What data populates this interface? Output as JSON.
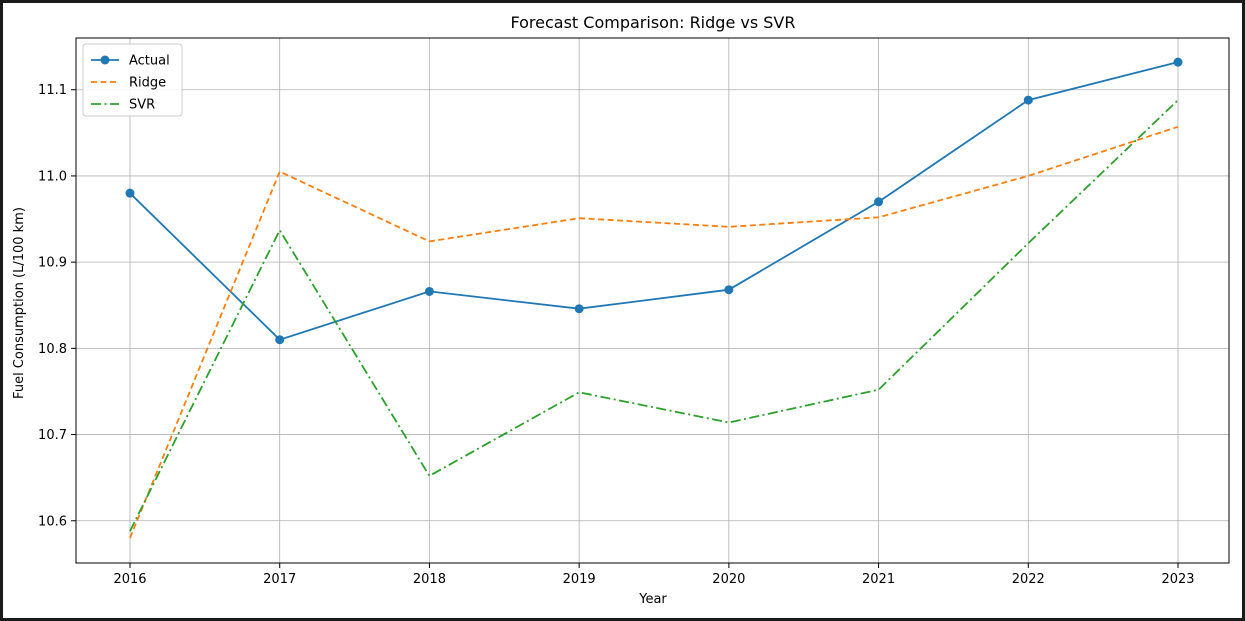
{
  "chart_data": {
    "type": "line",
    "title": "Forecast Comparison: Ridge vs SVR",
    "xlabel": "Year",
    "ylabel": "Fuel Consumption (L/100 km)",
    "x": [
      2016,
      2017,
      2018,
      2019,
      2020,
      2021,
      2022,
      2023
    ],
    "ylim": [
      10.551,
      11.16
    ],
    "yticks": [
      10.6,
      10.7,
      10.8,
      10.9,
      11.0,
      11.1
    ],
    "grid": true,
    "legend_position": "upper-left",
    "series": [
      {
        "name": "Actual",
        "color": "#1f77b4",
        "style": "solid-marker",
        "values": [
          10.98,
          10.81,
          10.866,
          10.846,
          10.868,
          10.97,
          11.088,
          11.132
        ]
      },
      {
        "name": "Ridge",
        "color": "#ff7f0e",
        "style": "dashed",
        "values": [
          10.58,
          11.005,
          10.924,
          10.951,
          10.941,
          10.952,
          11.0,
          11.057
        ]
      },
      {
        "name": "SVR",
        "color": "#2ca02c",
        "style": "dashdot",
        "values": [
          10.588,
          10.937,
          10.652,
          10.749,
          10.714,
          10.752,
          10.922,
          11.088
        ]
      }
    ]
  }
}
